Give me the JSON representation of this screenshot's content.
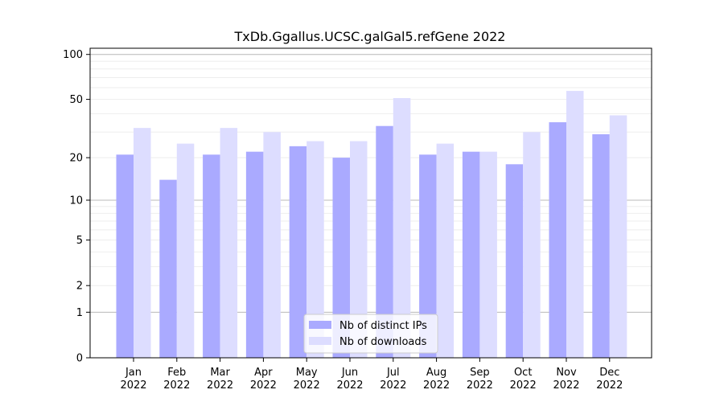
{
  "chart_data": {
    "type": "bar",
    "title": "TxDb.Ggallus.UCSC.galGal5.refGene 2022",
    "xlabel": "",
    "ylabel": "",
    "yscale": "log(1+y)",
    "ylim": [
      0,
      110
    ],
    "yticks": [
      0,
      1,
      2,
      5,
      10,
      20,
      50,
      100
    ],
    "grid": "horizontal",
    "legend_position": "bottom-center",
    "categories": [
      [
        "Jan",
        "2022"
      ],
      [
        "Feb",
        "2022"
      ],
      [
        "Mar",
        "2022"
      ],
      [
        "Apr",
        "2022"
      ],
      [
        "May",
        "2022"
      ],
      [
        "Jun",
        "2022"
      ],
      [
        "Jul",
        "2022"
      ],
      [
        "Aug",
        "2022"
      ],
      [
        "Sep",
        "2022"
      ],
      [
        "Oct",
        "2022"
      ],
      [
        "Nov",
        "2022"
      ],
      [
        "Dec",
        "2022"
      ]
    ],
    "series": [
      {
        "name": "Nb of distinct IPs",
        "color": "#aaaaff",
        "values": [
          21,
          14,
          21,
          22,
          24,
          20,
          33,
          21,
          22,
          18,
          35,
          29
        ]
      },
      {
        "name": "Nb of downloads",
        "color": "#ddddff",
        "values": [
          32,
          25,
          32,
          30,
          26,
          26,
          51,
          25,
          22,
          30,
          57,
          39
        ]
      }
    ]
  }
}
